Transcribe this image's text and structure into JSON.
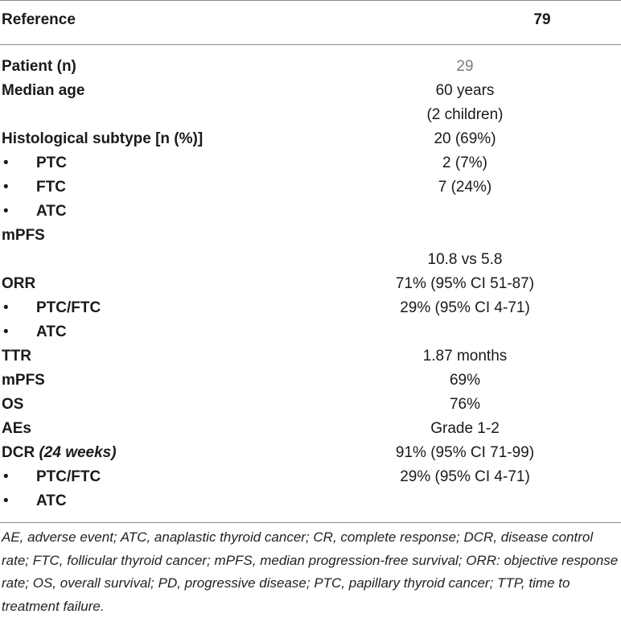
{
  "header": {
    "reference_label": "Reference",
    "reference_number": "79"
  },
  "rows": [
    {
      "label": "Patient (n)",
      "value": "29",
      "bullet": false
    },
    {
      "label": "Median age",
      "value": "60 years",
      "bullet": false
    },
    {
      "label": "",
      "value": "(2 children)",
      "bullet": false
    },
    {
      "label": "Histological subtype [n (%)]",
      "value": "20 (69%)",
      "bullet": false
    },
    {
      "label": "PTC",
      "value": "2 (7%)",
      "bullet": true
    },
    {
      "label": "FTC",
      "value": "7 (24%)",
      "bullet": true
    },
    {
      "label": "ATC",
      "value": "",
      "bullet": true
    },
    {
      "label": "mPFS",
      "value": "",
      "bullet": false
    },
    {
      "label": "",
      "value": "10.8 vs 5.8",
      "bullet": false
    },
    {
      "label": "ORR",
      "value": "71% (95% CI 51-87)",
      "bullet": false
    },
    {
      "label": "PTC/FTC",
      "value": "29% (95% CI 4-71)",
      "bullet": true
    },
    {
      "label": "ATC",
      "value": "",
      "bullet": true
    },
    {
      "label": "TTR",
      "value": "1.87 months",
      "bullet": false
    },
    {
      "label": "mPFS",
      "value": "69%",
      "bullet": false
    },
    {
      "label": "OS",
      "value": "76%",
      "bullet": false
    },
    {
      "label": "AEs",
      "value": "Grade 1-2",
      "bullet": false
    },
    {
      "label": "DCR",
      "label_italic": "(24 weeks)",
      "value": "91% (95% CI 71-99)",
      "bullet": false
    },
    {
      "label": "PTC/FTC",
      "value": "29% (95% CI 4-71)",
      "bullet": true
    },
    {
      "label": "ATC",
      "value": "",
      "bullet": true
    }
  ],
  "bullet_char": "•",
  "footnote": "AE, adverse event; ATC, anaplastic thyroid cancer; CR, complete response; DCR, disease control rate; FTC, follicular thyroid cancer; mPFS, median progression-free survival; ORR: objective response rate; OS, overall survival; PD, progressive disease; PTC, papillary thyroid cancer; TTP, time to treatment failure."
}
